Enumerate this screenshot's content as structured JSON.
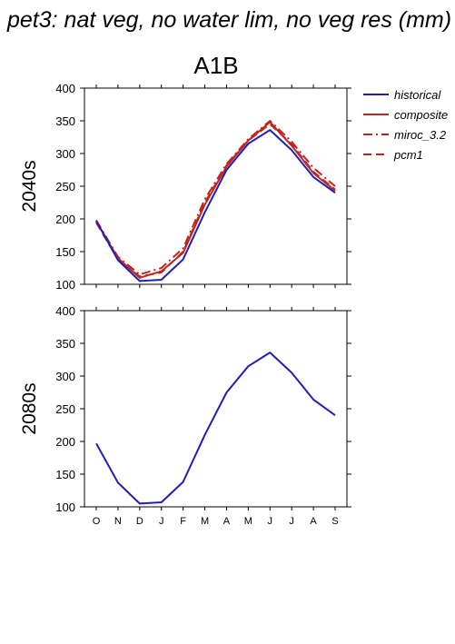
{
  "figure": {
    "title": "pet3: nat veg, no water lim, no veg res (mm)",
    "scenario": "A1B"
  },
  "legend": [
    {
      "name": "historical",
      "color": "#1f1fb4",
      "dash": "solid"
    },
    {
      "name": "composite",
      "color": "#c0241f",
      "dash": "solid"
    },
    {
      "name": "miroc_3.2",
      "color": "#c0241f",
      "dash": "dashdot"
    },
    {
      "name": "pcm1",
      "color": "#c0241f",
      "dash": "dash"
    }
  ],
  "chart_data": [
    {
      "type": "line",
      "row_label": "2040s",
      "categories": [
        "O",
        "N",
        "D",
        "J",
        "F",
        "M",
        "A",
        "M",
        "J",
        "J",
        "A",
        "S"
      ],
      "ylim": [
        100,
        400
      ],
      "yticks": [
        100,
        150,
        200,
        250,
        300,
        350,
        400
      ],
      "series": [
        {
          "name": "historical",
          "values": [
            197,
            137,
            105,
            107,
            138,
            210,
            275,
            315,
            336,
            305,
            264,
            240
          ]
        },
        {
          "name": "composite",
          "values": [
            196,
            140,
            110,
            120,
            148,
            222,
            280,
            320,
            348,
            312,
            270,
            243
          ]
        },
        {
          "name": "miroc_3.2",
          "values": [
            198,
            142,
            115,
            125,
            155,
            230,
            284,
            322,
            350,
            318,
            278,
            250
          ]
        },
        {
          "name": "pcm1",
          "values": [
            194,
            138,
            112,
            118,
            150,
            225,
            282,
            320,
            345,
            314,
            272,
            245
          ]
        }
      ]
    },
    {
      "type": "line",
      "row_label": "2080s",
      "categories": [
        "O",
        "N",
        "D",
        "J",
        "F",
        "M",
        "A",
        "M",
        "J",
        "J",
        "A",
        "S"
      ],
      "ylim": [
        100,
        400
      ],
      "yticks": [
        100,
        150,
        200,
        250,
        300,
        350,
        400
      ],
      "series": [
        {
          "name": "historical",
          "values": [
            197,
            137,
            105,
            107,
            138,
            210,
            275,
            315,
            336,
            305,
            264,
            240
          ]
        }
      ]
    }
  ]
}
